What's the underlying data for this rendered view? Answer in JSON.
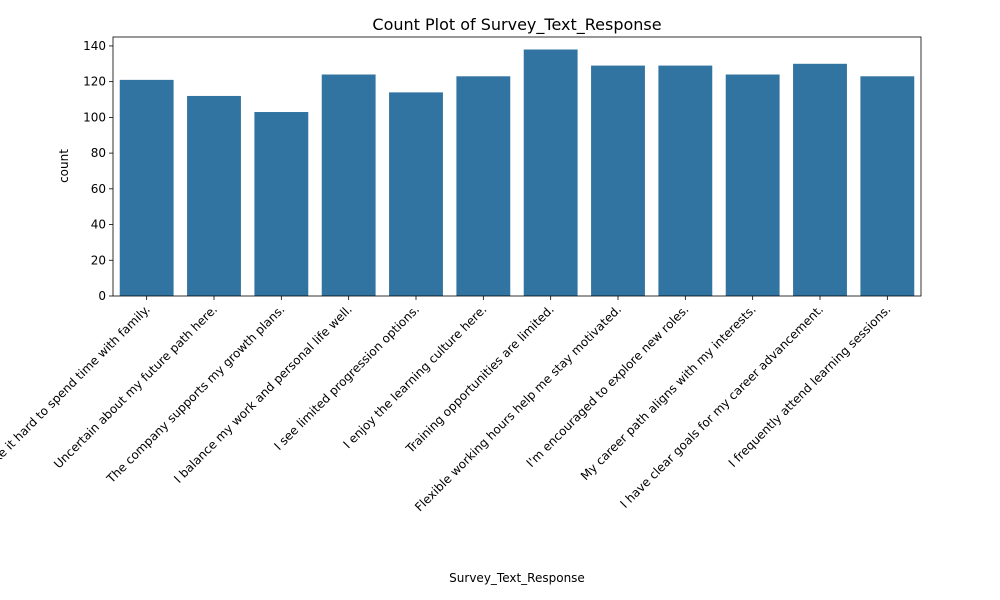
{
  "chart_data": {
    "type": "bar",
    "title": "Count Plot of Survey_Text_Response",
    "xlabel": "Survey_Text_Response",
    "ylabel": "count",
    "categories": [
      "Long hours make it hard to spend time with family.",
      "Uncertain about my future path here.",
      "The company supports my growth plans.",
      "I balance my work and personal life well.",
      "I see limited progression options.",
      "I enjoy the learning culture here.",
      "Training opportunities are limited.",
      "Flexible working hours help me stay motivated.",
      "I'm encouraged to explore new roles.",
      "My career path aligns with my interests.",
      "I have clear goals for my career advancement.",
      "I frequently attend learning sessions."
    ],
    "values": [
      121,
      112,
      103,
      124,
      114,
      123,
      138,
      129,
      129,
      124,
      130,
      123
    ],
    "yticks": [
      0,
      20,
      40,
      60,
      80,
      100,
      120,
      140
    ],
    "ylim": [
      0,
      145
    ],
    "bar_color": "#3274a1",
    "grid": false,
    "legend": "none"
  }
}
